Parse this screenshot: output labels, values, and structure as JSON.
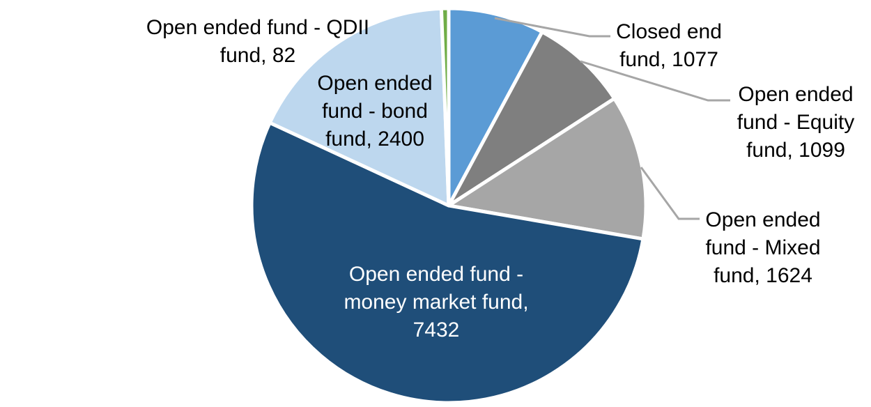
{
  "chart_data": {
    "type": "pie",
    "title": "",
    "legend": "none",
    "background": "#FFFFFF",
    "total": 13714,
    "start_angle_deg": 0,
    "direction": "clockwise",
    "slice_border_color": "#FFFFFF",
    "leader_line_color": "#A6A6A6",
    "slices": [
      {
        "id": "closed-end-fund",
        "label": "Closed end fund",
        "value": 1077,
        "color": "#5B9BD5"
      },
      {
        "id": "open-ended-equity-fund",
        "label": "Open ended fund - Equity fund",
        "value": 1099,
        "color": "#7F7F7F"
      },
      {
        "id": "open-ended-mixed-fund",
        "label": "Open ended fund - Mixed fund",
        "value": 1624,
        "color": "#A6A6A6"
      },
      {
        "id": "open-ended-money-market-fund",
        "label": "Open ended fund - money market fund",
        "value": 7432,
        "color": "#1F4E79"
      },
      {
        "id": "open-ended-bond-fund",
        "label": "Open ended fund - bond fund",
        "value": 2400,
        "color": "#BDD7EE"
      },
      {
        "id": "open-ended-qdii-fund",
        "label": "Open ended fund - QDII fund",
        "value": 82,
        "color": "#70AD47"
      }
    ]
  },
  "data_labels": {
    "qdii": {
      "lines": [
        "Open ended fund - QDII",
        "fund, 82"
      ],
      "text_color": "#000000"
    },
    "closed_end": {
      "lines": [
        "Closed end",
        "fund, 1077"
      ],
      "text_color": "#000000"
    },
    "equity": {
      "lines": [
        "Open ended",
        "fund - Equity",
        "fund, 1099"
      ],
      "text_color": "#000000"
    },
    "mixed": {
      "lines": [
        "Open ended",
        "fund - Mixed",
        "fund, 1624"
      ],
      "text_color": "#000000"
    },
    "bond": {
      "lines": [
        "Open ended",
        "fund - bond",
        "fund, 2400"
      ],
      "text_color": "#000000"
    },
    "money_market": {
      "lines": [
        "Open ended fund -",
        "money market fund,",
        "7432"
      ],
      "text_color": "#FFFFFF"
    }
  }
}
